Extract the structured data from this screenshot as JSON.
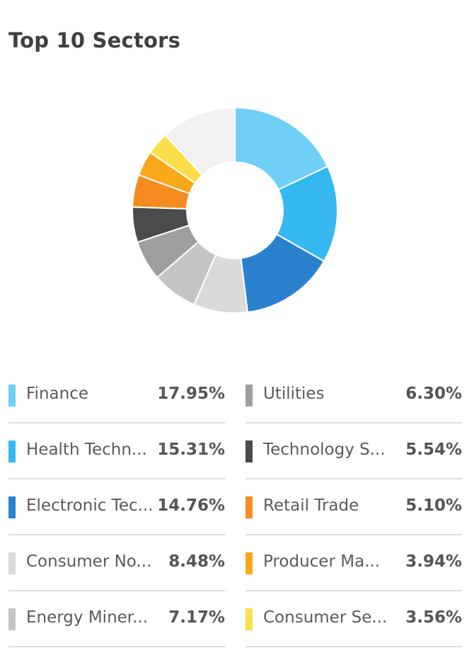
{
  "title": "Top 10 Sectors",
  "chart_data": {
    "type": "pie",
    "style": "donut",
    "title": "Top 10 Sectors",
    "categories": [
      "Finance",
      "Health Techn...",
      "Electronic Tec...",
      "Consumer No...",
      "Energy Miner...",
      "Utilities",
      "Technology S...",
      "Retail Trade",
      "Producer Ma...",
      "Consumer Se...",
      ""
    ],
    "values": [
      17.95,
      15.31,
      14.76,
      8.48,
      7.17,
      6.3,
      5.54,
      5.1,
      3.94,
      3.56,
      11.89
    ],
    "value_labels": [
      "17.95%",
      "15.31%",
      "14.76%",
      "8.48%",
      "7.17%",
      "6.30%",
      "5.54%",
      "5.10%",
      "3.94%",
      "3.56%",
      ""
    ],
    "colors": [
      "#6fcff6",
      "#36b8f0",
      "#2a82ce",
      "#dadada",
      "#c4c4c4",
      "#9e9e9e",
      "#4b4b4b",
      "#f68c1f",
      "#f9a81a",
      "#fcde4a",
      "#f1f1f1"
    ],
    "legend": "bottom"
  }
}
